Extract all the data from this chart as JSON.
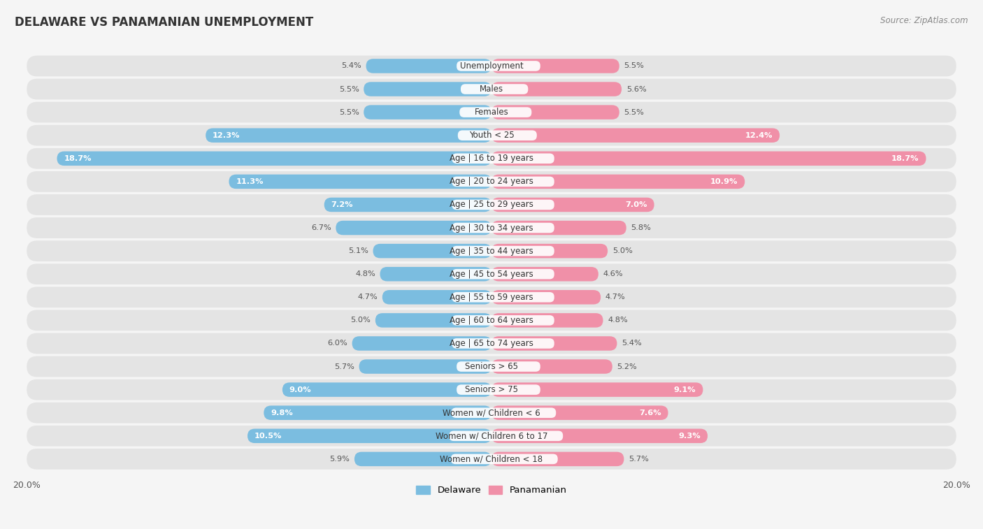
{
  "title": "DELAWARE VS PANAMANIAN UNEMPLOYMENT",
  "source": "Source: ZipAtlas.com",
  "categories": [
    "Unemployment",
    "Males",
    "Females",
    "Youth < 25",
    "Age | 16 to 19 years",
    "Age | 20 to 24 years",
    "Age | 25 to 29 years",
    "Age | 30 to 34 years",
    "Age | 35 to 44 years",
    "Age | 45 to 54 years",
    "Age | 55 to 59 years",
    "Age | 60 to 64 years",
    "Age | 65 to 74 years",
    "Seniors > 65",
    "Seniors > 75",
    "Women w/ Children < 6",
    "Women w/ Children 6 to 17",
    "Women w/ Children < 18"
  ],
  "delaware": [
    5.4,
    5.5,
    5.5,
    12.3,
    18.7,
    11.3,
    7.2,
    6.7,
    5.1,
    4.8,
    4.7,
    5.0,
    6.0,
    5.7,
    9.0,
    9.8,
    10.5,
    5.9
  ],
  "panamanian": [
    5.5,
    5.6,
    5.5,
    12.4,
    18.7,
    10.9,
    7.0,
    5.8,
    5.0,
    4.6,
    4.7,
    4.8,
    5.4,
    5.2,
    9.1,
    7.6,
    9.3,
    5.7
  ],
  "delaware_color": "#7BBDE0",
  "panamanian_color": "#F090A8",
  "row_bg_color": "#E8E8E8",
  "row_bg_dark": "#DCDCDC",
  "background_color": "#f5f5f5",
  "max_value": 20.0,
  "bar_height": 0.62,
  "label_fontsize": 8.5,
  "value_fontsize": 8.2,
  "title_fontsize": 12,
  "source_fontsize": 8.5,
  "inner_label_threshold": 7.0
}
